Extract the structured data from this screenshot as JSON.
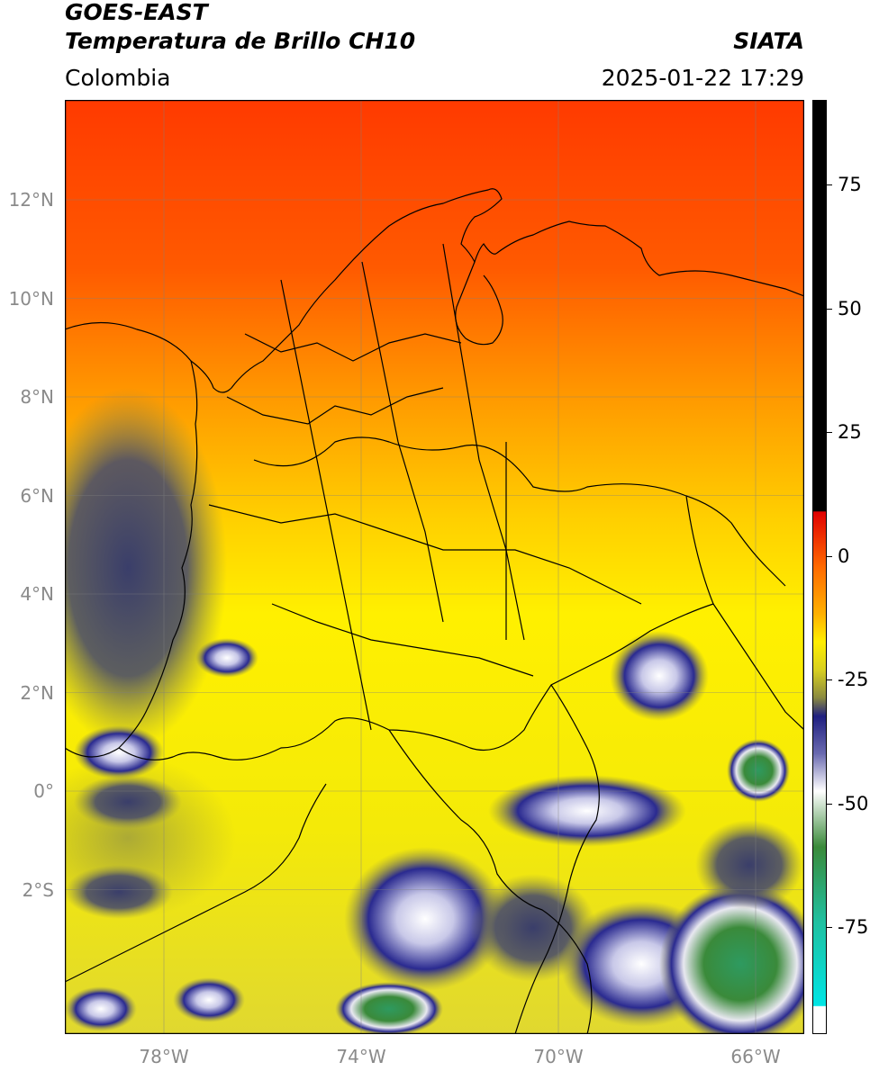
{
  "header": {
    "satellite": "GOES-EAST",
    "product": "Temperatura de Brillo CH10",
    "brand": "SIATA",
    "region": "Colombia",
    "timestamp": "2025-01-22 17:29"
  },
  "map": {
    "lat_labels": [
      "12°N",
      "10°N",
      "8°N",
      "6°N",
      "4°N",
      "2°N",
      "0°",
      "2°S"
    ],
    "lon_labels": [
      "78°W",
      "74°W",
      "70°W",
      "66°W"
    ],
    "lon_range": [
      -80,
      -65
    ],
    "lat_range": [
      -5,
      14
    ],
    "gridlines": true
  },
  "colorbar": {
    "labels": [
      "75",
      "50",
      "25",
      "0",
      "-25",
      "-50",
      "-75"
    ],
    "range": [
      -100,
      90
    ],
    "colors": {
      "warm_max": "#000000",
      "red": "#ff2a00",
      "orange": "#ff8c00",
      "yellow": "#ffee00",
      "olive": "#9b9b30",
      "navy": "#1a1a80",
      "white": "#ffffff",
      "green": "#2e8b2e",
      "cyan": "#00e5e5"
    }
  }
}
